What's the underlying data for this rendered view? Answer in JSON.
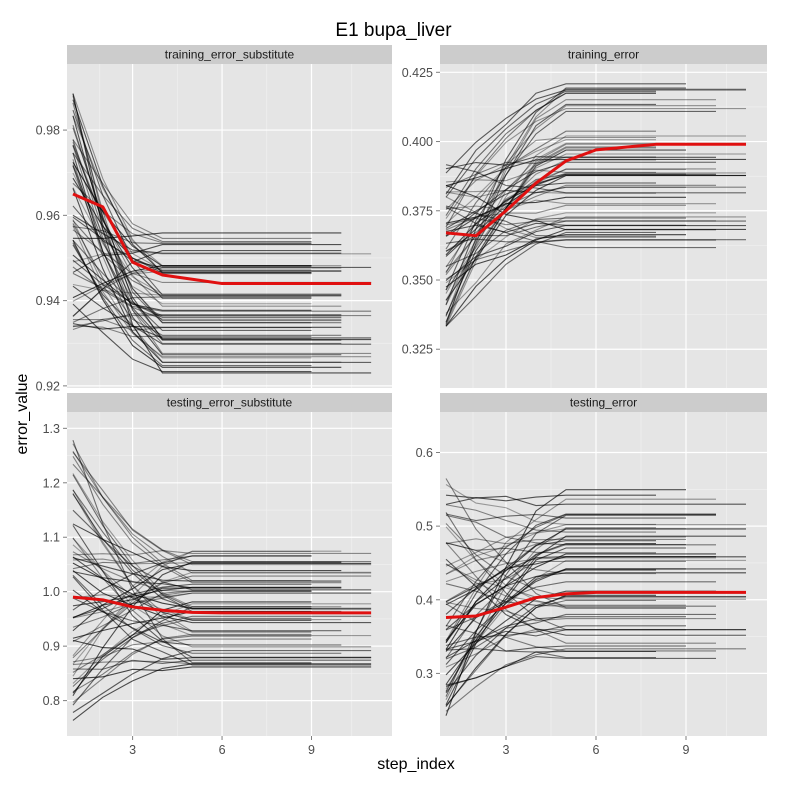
{
  "title": "E1 bupa_liver",
  "xlabel": "step_index",
  "ylabel": "error_value",
  "colors": {
    "panel_bg": "#e5e5e5",
    "strip_bg": "#cccccc",
    "grid_major": "#ffffff",
    "grid_minor": "#f2f2f2",
    "trace": "#000000",
    "mean": "#e01010",
    "tick_text": "#4d4d4d"
  },
  "chart_data": [
    {
      "type": "line",
      "strip": "training_error_substitute",
      "xlim": [
        0.8,
        11.7
      ],
      "ylim": [
        0.9195,
        0.9955
      ],
      "xticks": [
        3,
        6,
        9
      ],
      "yticks": [
        0.92,
        0.94,
        0.96,
        0.98
      ],
      "ytick_labels": [
        "0.92",
        "0.94",
        "0.96",
        "0.98"
      ],
      "grid": true,
      "mean_series": {
        "x": [
          1,
          2,
          3,
          4,
          5,
          6,
          7,
          8,
          9,
          10,
          11
        ],
        "values": [
          0.965,
          0.962,
          0.949,
          0.946,
          0.945,
          0.944,
          0.944,
          0.944,
          0.944,
          0.944,
          0.944
        ]
      },
      "traces": {
        "count": 60,
        "x_start": 1,
        "start_range": [
          0.933,
          0.99
        ],
        "final_range": [
          0.923,
          0.956
        ],
        "settle_step": 4,
        "last_step_range": [
          9,
          11
        ]
      }
    },
    {
      "type": "line",
      "strip": "training_error",
      "xlim": [
        0.8,
        11.7
      ],
      "ylim": [
        0.311,
        0.428
      ],
      "xticks": [
        3,
        6,
        9
      ],
      "yticks": [
        0.325,
        0.35,
        0.375,
        0.4,
        0.425
      ],
      "ytick_labels": [
        "0.325",
        "0.350",
        "0.375",
        "0.400",
        "0.425"
      ],
      "grid": true,
      "mean_series": {
        "x": [
          1,
          2,
          3,
          4,
          5,
          6,
          7,
          8,
          9,
          10,
          11
        ],
        "values": [
          0.367,
          0.366,
          0.375,
          0.385,
          0.393,
          0.397,
          0.398,
          0.399,
          0.399,
          0.399,
          0.399
        ]
      },
      "traces": {
        "count": 60,
        "x_start": 1,
        "start_range": [
          0.331,
          0.392
        ],
        "final_range": [
          0.36,
          0.422
        ],
        "settle_step": 5,
        "last_step_range": [
          8,
          11
        ]
      }
    },
    {
      "type": "line",
      "strip": "testing_error_substitute",
      "xlim": [
        0.8,
        11.7
      ],
      "ylim": [
        0.735,
        1.33
      ],
      "xticks": [
        3,
        6,
        9
      ],
      "yticks": [
        0.8,
        0.9,
        1.0,
        1.1,
        1.2,
        1.3
      ],
      "ytick_labels": [
        "0.8",
        "0.9",
        "1.0",
        "1.1",
        "1.2",
        "1.3"
      ],
      "grid": true,
      "mean_series": {
        "x": [
          1,
          2,
          3,
          4,
          5,
          6,
          7,
          8,
          9,
          10,
          11
        ],
        "values": [
          0.99,
          0.985,
          0.972,
          0.966,
          0.962,
          0.961,
          0.961,
          0.961,
          0.961,
          0.961,
          0.961
        ]
      },
      "traces": {
        "count": 60,
        "x_start": 1,
        "start_range": [
          0.76,
          1.28
        ],
        "final_range": [
          0.86,
          1.08
        ],
        "settle_step": 5,
        "last_step_range": [
          9,
          11
        ]
      }
    },
    {
      "type": "line",
      "strip": "testing_error",
      "xlim": [
        0.8,
        11.7
      ],
      "ylim": [
        0.215,
        0.655
      ],
      "xticks": [
        3,
        6,
        9
      ],
      "yticks": [
        0.3,
        0.4,
        0.5,
        0.6
      ],
      "ytick_labels": [
        "0.3",
        "0.4",
        "0.5",
        "0.6"
      ],
      "grid": true,
      "mean_series": {
        "x": [
          1,
          2,
          3,
          4,
          5,
          6,
          7,
          8,
          9,
          10,
          11
        ],
        "values": [
          0.376,
          0.378,
          0.39,
          0.403,
          0.408,
          0.41,
          0.41,
          0.41,
          0.41,
          0.41,
          0.41
        ]
      },
      "traces": {
        "count": 60,
        "x_start": 1,
        "start_range": [
          0.24,
          0.57
        ],
        "final_range": [
          0.32,
          0.55
        ],
        "settle_step": 5,
        "last_step_range": [
          8,
          11
        ]
      }
    }
  ]
}
